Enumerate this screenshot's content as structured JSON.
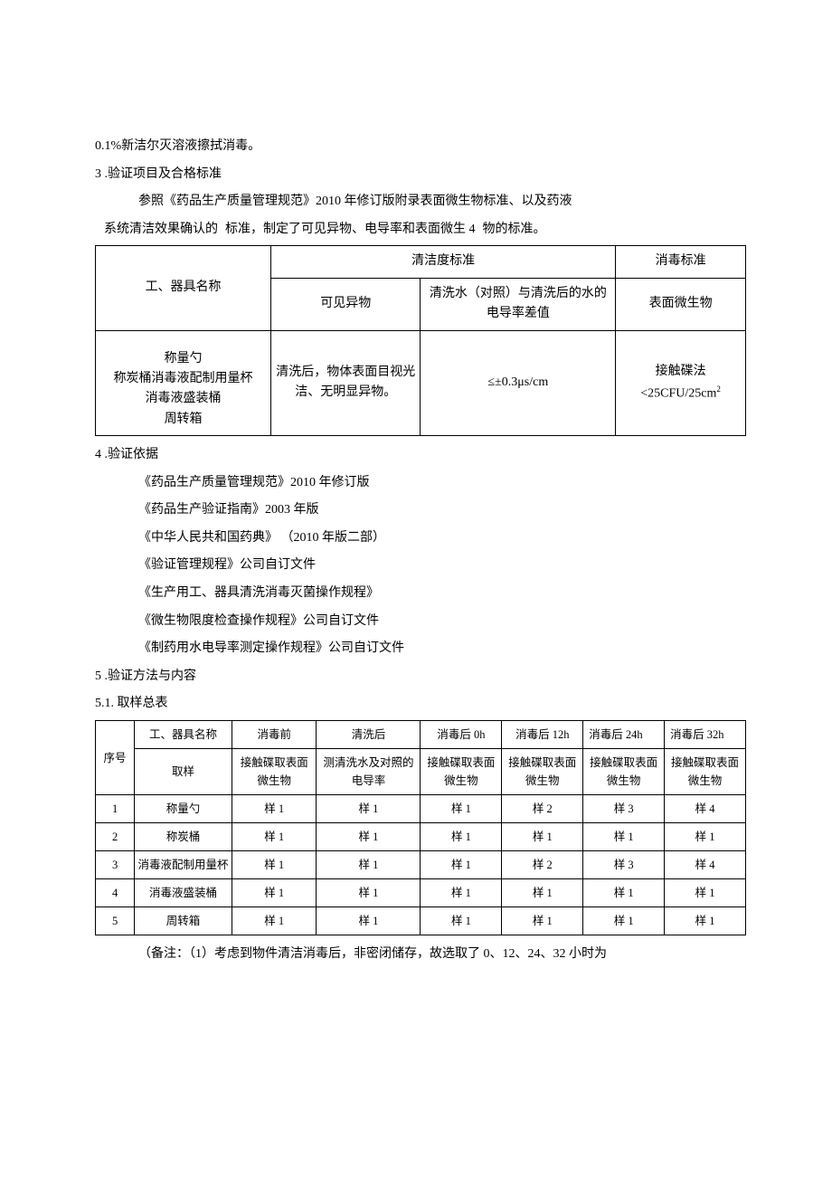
{
  "intro_line": "0.1%新洁尔灭溶液擦拭消毒。",
  "sec3": {
    "num": "3",
    "title": " .验证项目及合格标准",
    "p1a": "参照《药品生产质量管理规范》2010 年修订版附录表面微生物标准、以及药液",
    "p2a": "系统清洁效果确认的",
    "p2b": "标准，制定了可见异物、电导率和表面微生 4",
    "p2c": "物的标准。"
  },
  "table1": {
    "h_name": "工、器具名称",
    "h_clean": "清洁度标准",
    "h_disinfect": "消毒标准",
    "h_visible": "可见异物",
    "h_cond": "清洗水（对照）与清洗后的水的电导率差值",
    "h_micro": "表面微生物",
    "r_name_l1": "称量勺",
    "r_name_l2": "称炭桶消毒液配制用量杯",
    "r_name_l3": "消毒液盛装桶",
    "r_name_l4": "周转箱",
    "r_visible": "清洗后，物体表面目视光洁、无明显异物。",
    "r_cond": "≤±0.3μs/cm",
    "r_micro_l1": "接触碟法",
    "r_micro_l2": "<25CFU/25cm"
  },
  "sec4": {
    "num": "4",
    "title": " .验证依据",
    "items": [
      "《药品生产质量管理规范》2010 年修订版",
      "《药品生产验证指南》2003 年版",
      "《中华人民共和国药典》 （2010 年版二部）",
      "《验证管理规程》公司自订文件",
      "《生产用工、器具清洗消毒灭菌操作规程》",
      "《微生物限度检查操作规程》公司自订文件",
      "《制药用水电导率测定操作规程》公司自订文件"
    ]
  },
  "sec5": {
    "num": "5",
    "title": " .验证方法与内容",
    "sub_num": "5.1.",
    "sub_title": "  取样总表"
  },
  "table2": {
    "h_seq": "序号",
    "h_name": "工、器具名称",
    "h_before": "消毒前",
    "h_after_wash": "清洗后",
    "h_0h": "消毒后 0h",
    "h_12h": "消毒后 12h",
    "h_24h": "消毒后 24h",
    "h_32h": "消毒后 32h",
    "h_sample": "取样",
    "h_contact": "接触碟取表面微生物",
    "h_cond": "测清洗水及对照的电导率",
    "rows": [
      {
        "n": "1",
        "name": "称量勺",
        "c": [
          "样 1",
          "样 1",
          "样 1",
          "样 2",
          "样 3",
          "样 4"
        ]
      },
      {
        "n": "2",
        "name": "称炭桶",
        "c": [
          "样 1",
          "样 1",
          "样 1",
          "样 1",
          "样 1",
          "样 1"
        ]
      },
      {
        "n": "3",
        "name": "消毒液配制用量杯",
        "c": [
          "样 1",
          "样 1",
          "样 1",
          "样 2",
          "样 3",
          "样 4"
        ]
      },
      {
        "n": "4",
        "name": "消毒液盛装桶",
        "c": [
          "样 1",
          "样 1",
          "样 1",
          "样 1",
          "样 1",
          "样 1"
        ]
      },
      {
        "n": "5",
        "name": "周转箱",
        "c": [
          "样 1",
          "样 1",
          "样 1",
          "样 1",
          "样 1",
          "样 1"
        ]
      }
    ]
  },
  "note": "（备注：（1）考虑到物件清洁消毒后，非密闭储存，故选取了 0、12、24、32 小时为"
}
